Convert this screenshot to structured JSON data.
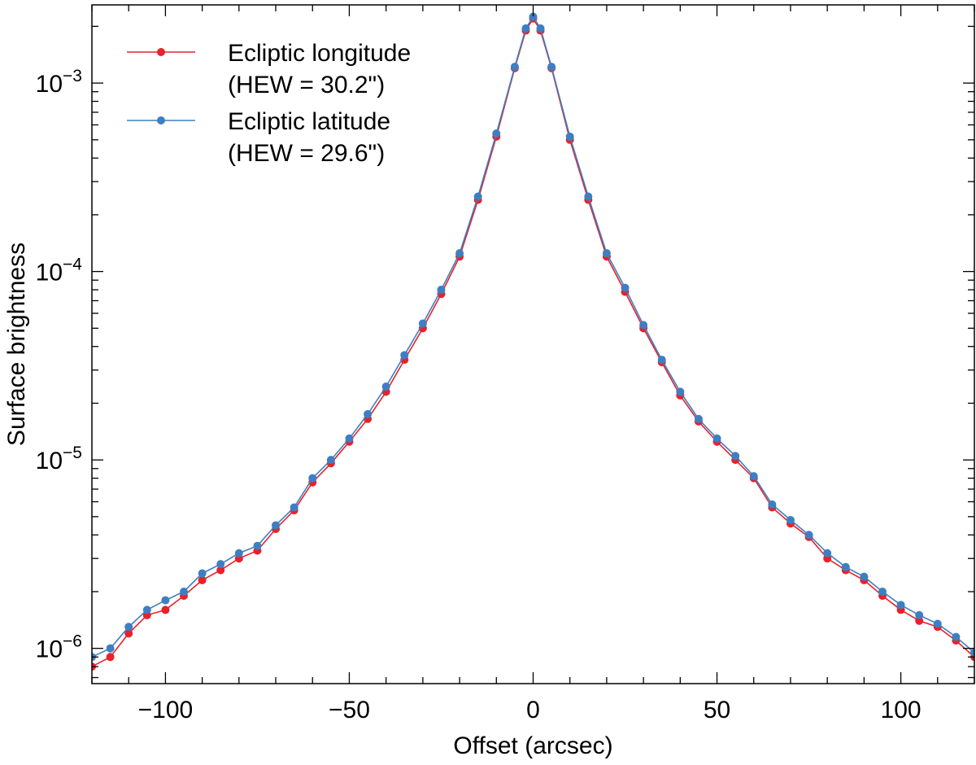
{
  "chart_data": {
    "type": "line",
    "title": "",
    "xlabel": "Offset (arcsec)",
    "ylabel": "Surface brightness",
    "xlim": [
      -120,
      120
    ],
    "ylim": [
      6.5e-07,
      0.0026
    ],
    "y_scale": "log",
    "x_ticks": [
      -100,
      -50,
      0,
      50,
      100
    ],
    "x_tick_labels": [
      "−100",
      "−50",
      "0",
      "50",
      "100"
    ],
    "y_ticks": [
      1e-06,
      1e-05,
      0.0001,
      0.001
    ],
    "y_tick_labels": [
      {
        "base": "10",
        "exp": "−6"
      },
      {
        "base": "10",
        "exp": "−5"
      },
      {
        "base": "10",
        "exp": "−4"
      },
      {
        "base": "10",
        "exp": "−3"
      }
    ],
    "grid": false,
    "legend_position": "top-left",
    "legend": [
      {
        "line1": "Ecliptic longitude",
        "line2": "(HEW = 30.2\")",
        "color": "#e8212b"
      },
      {
        "line1": "Ecliptic latitude",
        "line2": "(HEW = 29.6\")",
        "color": "#3d7fc2"
      }
    ],
    "series": [
      {
        "name": "Ecliptic longitude",
        "color": "#e8212b",
        "x": [
          -120,
          -115,
          -110,
          -105,
          -100,
          -95,
          -90,
          -85,
          -80,
          -75,
          -70,
          -65,
          -60,
          -55,
          -50,
          -45,
          -40,
          -35,
          -30,
          -25,
          -20,
          -15,
          -10,
          -5,
          -2,
          0,
          2,
          5,
          10,
          15,
          20,
          25,
          30,
          35,
          40,
          45,
          50,
          55,
          60,
          65,
          70,
          75,
          80,
          85,
          90,
          95,
          100,
          105,
          110,
          115,
          120
        ],
        "values": [
          8e-07,
          9e-07,
          1.2e-06,
          1.5e-06,
          1.6e-06,
          1.9e-06,
          2.3e-06,
          2.6e-06,
          3e-06,
          3.3e-06,
          4.3e-06,
          5.4e-06,
          7.6e-06,
          9.6e-06,
          1.25e-05,
          1.65e-05,
          2.3e-05,
          3.4e-05,
          5e-05,
          7.6e-05,
          0.00012,
          0.00024,
          0.00052,
          0.0012,
          0.0019,
          0.0022,
          0.0019,
          0.0012,
          0.0005,
          0.00024,
          0.00012,
          7.8e-05,
          5e-05,
          3.3e-05,
          2.2e-05,
          1.6e-05,
          1.25e-05,
          1e-05,
          8e-06,
          5.6e-06,
          4.6e-06,
          3.9e-06,
          3e-06,
          2.6e-06,
          2.3e-06,
          1.9e-06,
          1.6e-06,
          1.4e-06,
          1.3e-06,
          1.1e-06,
          9e-07
        ]
      },
      {
        "name": "Ecliptic latitude",
        "color": "#3d7fc2",
        "x": [
          -120,
          -115,
          -110,
          -105,
          -100,
          -95,
          -90,
          -85,
          -80,
          -75,
          -70,
          -65,
          -60,
          -55,
          -50,
          -45,
          -40,
          -35,
          -30,
          -25,
          -20,
          -15,
          -10,
          -5,
          -2,
          0,
          2,
          5,
          10,
          15,
          20,
          25,
          30,
          35,
          40,
          45,
          50,
          55,
          60,
          65,
          70,
          75,
          80,
          85,
          90,
          95,
          100,
          105,
          110,
          115,
          120
        ],
        "values": [
          9e-07,
          1e-06,
          1.3e-06,
          1.6e-06,
          1.8e-06,
          2e-06,
          2.5e-06,
          2.8e-06,
          3.2e-06,
          3.5e-06,
          4.5e-06,
          5.6e-06,
          8e-06,
          1e-05,
          1.3e-05,
          1.75e-05,
          2.45e-05,
          3.6e-05,
          5.3e-05,
          8e-05,
          0.000125,
          0.00025,
          0.00054,
          0.00122,
          0.00195,
          0.00225,
          0.00195,
          0.00122,
          0.00052,
          0.00025,
          0.000125,
          8.2e-05,
          5.2e-05,
          3.4e-05,
          2.3e-05,
          1.65e-05,
          1.3e-05,
          1.05e-05,
          8.2e-06,
          5.8e-06,
          4.8e-06,
          4e-06,
          3.2e-06,
          2.7e-06,
          2.4e-06,
          2e-06,
          1.7e-06,
          1.5e-06,
          1.35e-06,
          1.15e-06,
          9.5e-07
        ]
      }
    ]
  }
}
